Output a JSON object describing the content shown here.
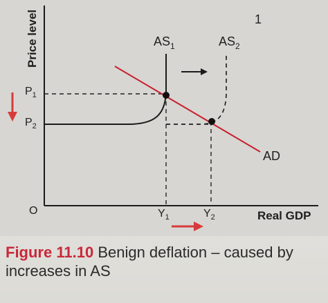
{
  "diagram": {
    "y_axis_label": "Price level",
    "x_axis_label": "Real GDP",
    "origin_label": "O",
    "corner_mark": "1",
    "price_labels": {
      "p1": "P",
      "p1_sub": "1",
      "p2": "P",
      "p2_sub": "2"
    },
    "output_labels": {
      "y1": "Y",
      "y1_sub": "1",
      "y2": "Y",
      "y2_sub": "2"
    },
    "curves": {
      "as1": "AS",
      "as1_sub": "1",
      "as2": "AS",
      "as2_sub": "2",
      "ad": "AD"
    },
    "colors": {
      "ad_line": "#c8202f",
      "arrows": "#d83a3a",
      "axes": "#1a1a1a"
    }
  },
  "caption": {
    "figure_label": "Figure 11.10",
    "text": "Benign deflation – caused by increases in AS"
  }
}
